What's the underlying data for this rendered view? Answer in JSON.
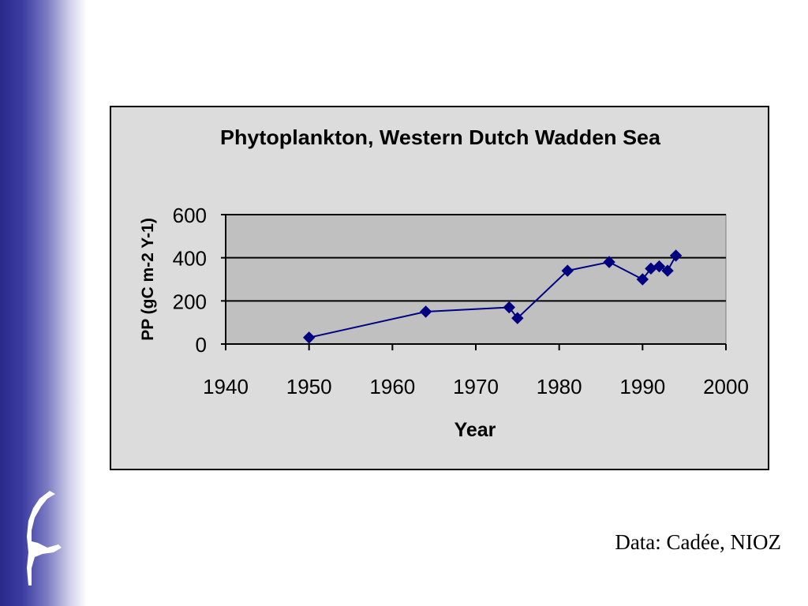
{
  "chart_data": {
    "type": "line",
    "title": "Phytoplankton, Western Dutch Wadden Sea",
    "xlabel": "Year",
    "ylabel": "PP (gC m-2 Y-1)",
    "xlim": [
      1940,
      2000
    ],
    "ylim": [
      0,
      600
    ],
    "x_ticks": [
      1940,
      1950,
      1960,
      1970,
      1980,
      1990,
      2000
    ],
    "y_ticks": [
      0,
      200,
      400,
      600
    ],
    "grid": "horizontal",
    "legend": "none",
    "series": [
      {
        "x": [
          1950,
          1964,
          1974,
          1975,
          1981,
          1986,
          1990,
          1991,
          1992,
          1993,
          1994
        ],
        "y": [
          30,
          150,
          170,
          120,
          340,
          380,
          300,
          350,
          360,
          340,
          410
        ],
        "color": "#000080",
        "marker": "diamond"
      }
    ],
    "plot_background": "#c0c0c0",
    "chart_background": "#dcdcdc"
  },
  "credit": "Data: Cadée, NIOZ",
  "colors": {
    "side_band_dark": "#2a2a8c",
    "side_band_light": "#ffffff"
  },
  "logo_icon": "island-silhouette-icon"
}
